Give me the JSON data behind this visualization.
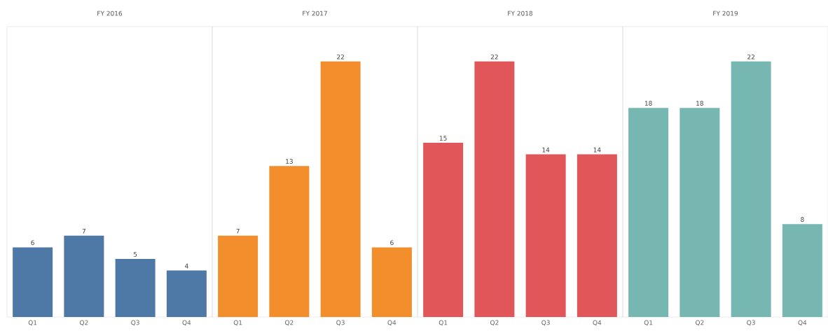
{
  "chart_data": [
    {
      "type": "bar",
      "title": "FY 2016",
      "categories": [
        "Q1",
        "Q2",
        "Q3",
        "Q4"
      ],
      "values": [
        6,
        7,
        5,
        4
      ],
      "color": "#4e79a7",
      "ylim": [
        0,
        25
      ],
      "data_labels": true,
      "tick_labels": "x"
    },
    {
      "type": "bar",
      "title": "FY 2017",
      "categories": [
        "Q1",
        "Q2",
        "Q3",
        "Q4"
      ],
      "values": [
        7,
        13,
        22,
        6
      ],
      "color": "#f28e2b",
      "ylim": [
        0,
        25
      ],
      "data_labels": true,
      "tick_labels": "x"
    },
    {
      "type": "bar",
      "title": "FY 2018",
      "categories": [
        "Q1",
        "Q2",
        "Q3",
        "Q4"
      ],
      "values": [
        15,
        22,
        14,
        14
      ],
      "color": "#e15759",
      "ylim": [
        0,
        25
      ],
      "data_labels": true,
      "tick_labels": "x"
    },
    {
      "type": "bar",
      "title": "FY 2019",
      "categories": [
        "Q1",
        "Q2",
        "Q3",
        "Q4"
      ],
      "values": [
        18,
        18,
        22,
        8
      ],
      "color": "#76b7b2",
      "ylim": [
        0,
        25
      ],
      "data_labels": true,
      "tick_labels": "x"
    }
  ]
}
